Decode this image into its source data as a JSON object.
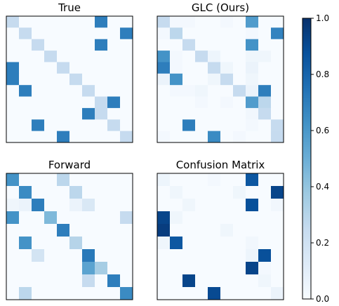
{
  "chart_data": {
    "type": "heatmap",
    "colormap": "Blues",
    "grid": false,
    "vmin": 0.0,
    "vmax": 1.0,
    "colorbar": {
      "ticks": [
        0.0,
        0.2,
        0.4,
        0.6,
        0.8,
        1.0
      ],
      "tick_labels": [
        "0.0",
        "0.2",
        "0.4",
        "0.6",
        "0.8",
        "1.0"
      ]
    },
    "panels": [
      {
        "title": "True",
        "matrix": [
          [
            0.25,
            0,
            0,
            0,
            0,
            0,
            0,
            0.7,
            0,
            0
          ],
          [
            0,
            0.25,
            0,
            0,
            0,
            0,
            0,
            0,
            0,
            0.7
          ],
          [
            0,
            0,
            0.25,
            0,
            0,
            0,
            0,
            0.7,
            0,
            0
          ],
          [
            0,
            0,
            0,
            0.25,
            0,
            0,
            0,
            0,
            0,
            0
          ],
          [
            0.7,
            0,
            0,
            0,
            0.25,
            0,
            0,
            0,
            0,
            0
          ],
          [
            0.7,
            0,
            0,
            0,
            0,
            0.25,
            0,
            0,
            0,
            0
          ],
          [
            0,
            0.7,
            0,
            0,
            0,
            0,
            0.25,
            0,
            0,
            0
          ],
          [
            0,
            0,
            0,
            0,
            0,
            0,
            0,
            0.25,
            0.7,
            0
          ],
          [
            0,
            0,
            0,
            0,
            0,
            0,
            0.7,
            0.25,
            0,
            0
          ],
          [
            0,
            0,
            0.7,
            0,
            0,
            0,
            0,
            0,
            0.25,
            0
          ],
          [
            0,
            0,
            0,
            0,
            0.7,
            0,
            0,
            0,
            0,
            0.25
          ]
        ]
      },
      {
        "title": "GLC (Ours)",
        "matrix": [
          [
            0.25,
            0.02,
            0.02,
            0,
            0,
            0.02,
            0,
            0.58,
            0,
            0
          ],
          [
            0.02,
            0.28,
            0,
            0,
            0,
            0,
            0,
            0.02,
            0,
            0.68
          ],
          [
            0,
            0,
            0.25,
            0,
            0,
            0,
            0,
            0.62,
            0,
            0
          ],
          [
            0.62,
            0.02,
            0,
            0.25,
            0.05,
            0,
            0,
            0.04,
            0.04,
            0
          ],
          [
            0.7,
            0.02,
            0,
            0,
            0.25,
            0.04,
            0,
            0.06,
            0,
            0
          ],
          [
            0.06,
            0.62,
            0,
            0,
            0.04,
            0.25,
            0,
            0.04,
            0,
            0
          ],
          [
            0,
            0.02,
            0.02,
            0.04,
            0,
            0,
            0.25,
            0.06,
            0.7,
            0
          ],
          [
            0,
            0,
            0,
            0.02,
            0,
            0.02,
            0,
            0.58,
            0.28,
            0
          ],
          [
            0,
            0,
            0,
            0,
            0,
            0,
            0,
            0.03,
            0.25,
            0
          ],
          [
            0,
            0,
            0.7,
            0,
            0,
            0,
            0,
            0.02,
            0,
            0.25
          ],
          [
            0.02,
            0,
            0,
            0,
            0.65,
            0,
            0.02,
            0,
            0,
            0.25
          ]
        ]
      },
      {
        "title": "Forward",
        "matrix": [
          [
            0.62,
            0,
            0,
            0,
            0.28,
            0,
            0,
            0,
            0,
            0
          ],
          [
            0,
            0.65,
            0,
            0,
            0,
            0.28,
            0,
            0,
            0,
            0
          ],
          [
            0.04,
            0.06,
            0.7,
            0,
            0,
            0.06,
            0.15,
            0,
            0,
            0
          ],
          [
            0.62,
            0,
            0,
            0.45,
            0,
            0,
            0,
            0,
            0,
            0.25
          ],
          [
            0,
            0,
            0,
            0,
            0.7,
            0,
            0,
            0,
            0,
            0
          ],
          [
            0,
            0.62,
            0,
            0,
            0,
            0.3,
            0,
            0,
            0,
            0
          ],
          [
            0,
            0,
            0.18,
            0,
            0,
            0,
            0.72,
            0,
            0,
            0
          ],
          [
            0,
            0,
            0,
            0,
            0,
            0,
            0.55,
            0.35,
            0,
            0
          ],
          [
            0,
            0,
            0,
            0,
            0,
            0,
            0.25,
            0,
            0.7,
            0
          ],
          [
            0,
            0.28,
            0,
            0,
            0,
            0,
            0,
            0,
            0,
            0.65
          ]
        ]
      },
      {
        "title": "Confusion Matrix",
        "matrix": [
          [
            0.05,
            0,
            0,
            0,
            0.02,
            0,
            0,
            0.85,
            0,
            0
          ],
          [
            0,
            0.04,
            0,
            0,
            0,
            0,
            0.04,
            0,
            0,
            0.92
          ],
          [
            0,
            0,
            0.04,
            0,
            0,
            0,
            0,
            0.88,
            0,
            0.03
          ],
          [
            0.92,
            0.04,
            0,
            0,
            0,
            0,
            0,
            0,
            0,
            0
          ],
          [
            0.95,
            0,
            0,
            0,
            0,
            0.04,
            0,
            0,
            0,
            0
          ],
          [
            0.04,
            0.85,
            0,
            0,
            0,
            0,
            0,
            0.03,
            0,
            0
          ],
          [
            0,
            0,
            0,
            0,
            0,
            0,
            0,
            0.05,
            0.88,
            0
          ],
          [
            0,
            0,
            0,
            0,
            0,
            0,
            0,
            0.92,
            0.02,
            0
          ],
          [
            0,
            0,
            0.92,
            0,
            0,
            0,
            0,
            0,
            0.04,
            0
          ],
          [
            0,
            0,
            0,
            0,
            0.9,
            0,
            0,
            0,
            0,
            0.06
          ]
        ]
      }
    ]
  }
}
